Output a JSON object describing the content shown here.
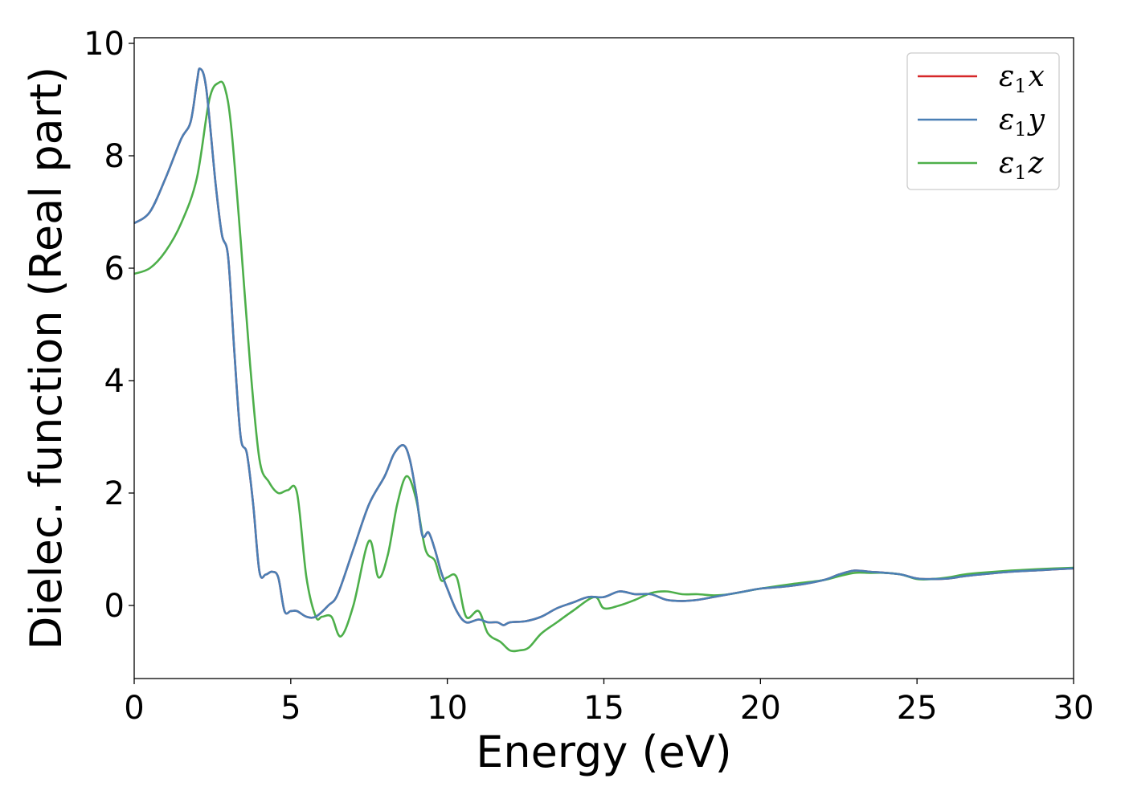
{
  "chart_data": {
    "type": "line",
    "xlabel": "Energy (eV)",
    "ylabel": "Dielec. function (Real part)",
    "xlim": [
      0,
      30
    ],
    "ylim": [
      -1.3,
      10.1
    ],
    "xticks": [
      0,
      5,
      10,
      15,
      20,
      25,
      30
    ],
    "yticks": [
      0,
      2,
      4,
      6,
      8,
      10
    ],
    "xtick_labels": [
      "0",
      "5",
      "10",
      "15",
      "20",
      "25",
      "30"
    ],
    "ytick_labels": [
      "0",
      "2",
      "4",
      "6",
      "8",
      "10"
    ],
    "grid": false,
    "legend_position": "top-right",
    "series": [
      {
        "name": "ε1x",
        "legend_base": "ε",
        "legend_sub": "1",
        "legend_var": "x",
        "color": "#d62728",
        "x": [
          0,
          0.5,
          1.0,
          1.5,
          1.8,
          2.0,
          2.1,
          2.3,
          2.6,
          2.8,
          3.0,
          3.2,
          3.4,
          3.6,
          3.8,
          4.0,
          4.2,
          4.4,
          4.6,
          4.8,
          5.0,
          5.2,
          5.5,
          5.8,
          6.2,
          6.5,
          7.0,
          7.5,
          8.0,
          8.3,
          8.6,
          8.8,
          9.0,
          9.2,
          9.4,
          9.6,
          9.8,
          10.0,
          10.3,
          10.6,
          11.0,
          11.3,
          11.6,
          11.8,
          12.0,
          12.5,
          13.0,
          13.5,
          14.0,
          14.5,
          15.0,
          15.5,
          16.0,
          16.5,
          17.0,
          17.5,
          18.0,
          18.5,
          19.0,
          19.5,
          20.0,
          21.0,
          22.0,
          22.5,
          23.0,
          23.5,
          24.0,
          24.5,
          25.0,
          25.5,
          26.0,
          26.5,
          27.0,
          28.0,
          29.0,
          30.0
        ],
        "y": [
          6.8,
          7.0,
          7.6,
          8.3,
          8.6,
          9.3,
          9.55,
          9.2,
          7.5,
          6.6,
          6.2,
          4.5,
          3.0,
          2.7,
          1.8,
          0.6,
          0.55,
          0.6,
          0.5,
          -0.1,
          -0.1,
          -0.1,
          -0.2,
          -0.2,
          0.0,
          0.2,
          1.0,
          1.8,
          2.3,
          2.7,
          2.85,
          2.6,
          2.0,
          1.25,
          1.3,
          1.0,
          0.6,
          0.3,
          -0.1,
          -0.3,
          -0.25,
          -0.3,
          -0.3,
          -0.35,
          -0.3,
          -0.28,
          -0.2,
          -0.05,
          0.05,
          0.15,
          0.15,
          0.25,
          0.2,
          0.2,
          0.1,
          0.08,
          0.1,
          0.15,
          0.2,
          0.25,
          0.3,
          0.35,
          0.45,
          0.55,
          0.62,
          0.6,
          0.58,
          0.55,
          0.48,
          0.47,
          0.48,
          0.52,
          0.55,
          0.6,
          0.63,
          0.66
        ]
      },
      {
        "name": "ε1y",
        "legend_base": "ε",
        "legend_sub": "1",
        "legend_var": "y",
        "color": "#4a7fb5",
        "x": [
          0,
          0.5,
          1.0,
          1.5,
          1.8,
          2.0,
          2.1,
          2.3,
          2.6,
          2.8,
          3.0,
          3.2,
          3.4,
          3.6,
          3.8,
          4.0,
          4.2,
          4.4,
          4.6,
          4.8,
          5.0,
          5.2,
          5.5,
          5.8,
          6.2,
          6.5,
          7.0,
          7.5,
          8.0,
          8.3,
          8.6,
          8.8,
          9.0,
          9.2,
          9.4,
          9.6,
          9.8,
          10.0,
          10.3,
          10.6,
          11.0,
          11.3,
          11.6,
          11.8,
          12.0,
          12.5,
          13.0,
          13.5,
          14.0,
          14.5,
          15.0,
          15.5,
          16.0,
          16.5,
          17.0,
          17.5,
          18.0,
          18.5,
          19.0,
          19.5,
          20.0,
          21.0,
          22.0,
          22.5,
          23.0,
          23.5,
          24.0,
          24.5,
          25.0,
          25.5,
          26.0,
          26.5,
          27.0,
          28.0,
          29.0,
          30.0
        ],
        "y": [
          6.8,
          7.0,
          7.6,
          8.3,
          8.6,
          9.3,
          9.55,
          9.2,
          7.5,
          6.6,
          6.2,
          4.5,
          3.0,
          2.7,
          1.8,
          0.6,
          0.55,
          0.6,
          0.5,
          -0.1,
          -0.1,
          -0.1,
          -0.2,
          -0.2,
          0.0,
          0.2,
          1.0,
          1.8,
          2.3,
          2.7,
          2.85,
          2.6,
          2.0,
          1.25,
          1.3,
          1.0,
          0.6,
          0.3,
          -0.1,
          -0.3,
          -0.25,
          -0.3,
          -0.3,
          -0.35,
          -0.3,
          -0.28,
          -0.2,
          -0.05,
          0.05,
          0.15,
          0.15,
          0.25,
          0.2,
          0.2,
          0.1,
          0.08,
          0.1,
          0.15,
          0.2,
          0.25,
          0.3,
          0.35,
          0.45,
          0.55,
          0.62,
          0.6,
          0.58,
          0.55,
          0.48,
          0.47,
          0.48,
          0.52,
          0.55,
          0.6,
          0.63,
          0.66
        ]
      },
      {
        "name": "ε1z",
        "legend_base": "ε",
        "legend_sub": "1",
        "legend_var": "z",
        "color": "#4daf4a",
        "x": [
          0,
          0.5,
          1.0,
          1.5,
          2.0,
          2.4,
          2.7,
          2.9,
          3.1,
          3.4,
          3.7,
          4.0,
          4.3,
          4.6,
          4.9,
          5.2,
          5.5,
          5.8,
          6.0,
          6.3,
          6.6,
          7.0,
          7.5,
          7.8,
          8.1,
          8.4,
          8.7,
          9.0,
          9.3,
          9.6,
          9.8,
          10.0,
          10.3,
          10.6,
          11.0,
          11.3,
          11.7,
          12.0,
          12.3,
          12.6,
          13.0,
          13.5,
          14.0,
          14.7,
          15.0,
          15.5,
          16.0,
          16.5,
          17.0,
          17.5,
          18.0,
          18.5,
          19.0,
          19.5,
          20.0,
          21.0,
          22.0,
          22.5,
          23.0,
          23.5,
          24.0,
          24.5,
          25.0,
          25.5,
          26.0,
          26.5,
          27.0,
          28.0,
          29.0,
          30.0
        ],
        "y": [
          5.9,
          6.0,
          6.3,
          6.8,
          7.6,
          9.0,
          9.3,
          9.2,
          8.5,
          6.5,
          4.3,
          2.6,
          2.2,
          2.0,
          2.05,
          2.0,
          0.5,
          -0.2,
          -0.2,
          -0.2,
          -0.55,
          0.0,
          1.15,
          0.5,
          0.9,
          1.8,
          2.3,
          1.9,
          1.0,
          0.8,
          0.45,
          0.5,
          0.5,
          -0.2,
          -0.1,
          -0.5,
          -0.65,
          -0.8,
          -0.8,
          -0.75,
          -0.5,
          -0.3,
          -0.1,
          0.15,
          -0.05,
          0.0,
          0.1,
          0.22,
          0.25,
          0.2,
          0.2,
          0.18,
          0.2,
          0.25,
          0.3,
          0.38,
          0.45,
          0.52,
          0.58,
          0.58,
          0.58,
          0.55,
          0.47,
          0.47,
          0.5,
          0.55,
          0.58,
          0.62,
          0.65,
          0.67
        ]
      }
    ]
  }
}
